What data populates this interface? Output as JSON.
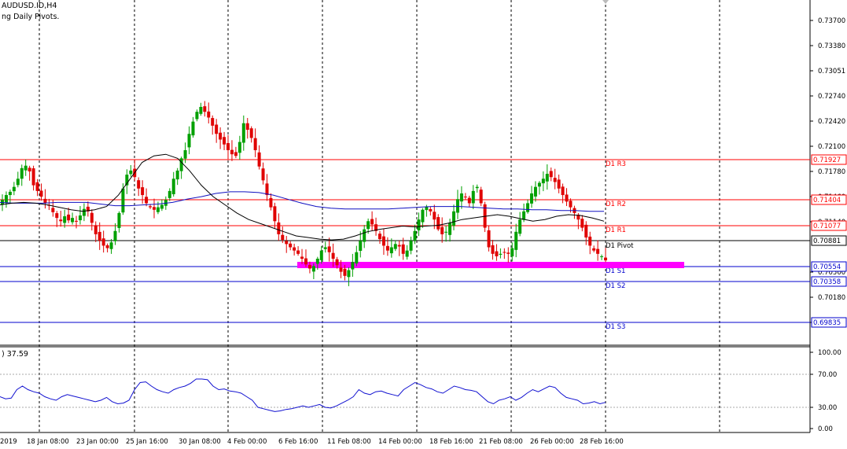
{
  "header": {
    "title": "AUDUSD.ID,H4",
    "indicator_name": "ng Daily Pivots."
  },
  "colors": {
    "up_candle": "#00a000",
    "down_candle": "#e00000",
    "ma_fast": "#000000",
    "ma_slow": "#1010c0",
    "resistance": "#ff0000",
    "pivot": "#000000",
    "support": "#0000cc",
    "zone": "#ff00ff",
    "rsi": "#1010d0",
    "grid": "#000000"
  },
  "price_axis": {
    "ticks": [
      "0.73700",
      "0.73380",
      "0.73051",
      "0.72740",
      "0.72420",
      "0.72100",
      "0.71780",
      "0.71460",
      "0.71140",
      "0.70500",
      "0.70180",
      "0.69860"
    ]
  },
  "time_axis": {
    "labels": [
      "2019",
      "18 Jan 08:00",
      "23 Jan 00:00",
      "25 Jan 16:00",
      "30 Jan 08:00",
      "4 Feb 00:00",
      "6 Feb 16:00",
      "11 Feb 08:00",
      "14 Feb 00:00",
      "18 Feb 16:00",
      "21 Feb 08:00",
      "26 Feb 00:00",
      "28 Feb 16:00"
    ]
  },
  "pivots": [
    {
      "name": "D1  R3",
      "value": 0.71927,
      "price_label": "0.71927",
      "type": "resistance"
    },
    {
      "name": "D1  R2",
      "value": 0.71404,
      "price_label": "0.71404",
      "type": "resistance"
    },
    {
      "name": "D1  R1",
      "value": 0.71077,
      "price_label": "0.71077",
      "type": "resistance"
    },
    {
      "name": "D1  Pivot",
      "value": 0.70881,
      "price_label": "0.70881",
      "type": "pivot"
    },
    {
      "name": "D1  S1",
      "value": 0.70554,
      "price_label": "0.70554",
      "type": "support"
    },
    {
      "name": "D1  S2",
      "value": 0.70358,
      "price_label": "0.70358",
      "type": "support"
    },
    {
      "name": "D1  S3",
      "value": 0.69835,
      "price_label": "0.69835",
      "type": "support"
    }
  ],
  "support_zone": {
    "from": 0.7054,
    "to": 0.7061
  },
  "rsi": {
    "label": ") 37.59",
    "ticks": [
      "100.00",
      "70.00",
      "30.00",
      "0.00"
    ]
  },
  "chart_data": [
    {
      "type": "candlestick",
      "title": "AUDUSD.ID,H4",
      "ylim": [
        0.6977,
        0.7399
      ],
      "close_path": [
        0.7154,
        0.716,
        0.7164,
        0.717,
        0.718,
        0.7193,
        0.7196,
        0.7189,
        0.7172,
        0.7165,
        0.7158,
        0.715,
        0.7147,
        0.7139,
        0.7132,
        0.7128,
        0.7134,
        0.7129,
        0.7132,
        0.7128,
        0.7135,
        0.7143,
        0.714,
        0.7126,
        0.7112,
        0.7104,
        0.7098,
        0.7095,
        0.7102,
        0.7116,
        0.7138,
        0.7168,
        0.7185,
        0.719,
        0.7182,
        0.7168,
        0.716,
        0.715,
        0.7145,
        0.7142,
        0.7145,
        0.7148,
        0.7154,
        0.7165,
        0.718,
        0.719,
        0.7205,
        0.7215,
        0.7235,
        0.725,
        0.7262,
        0.7268,
        0.7262,
        0.7255,
        0.7245,
        0.7235,
        0.7228,
        0.7222,
        0.7215,
        0.721,
        0.7208,
        0.7225,
        0.7248,
        0.724,
        0.723,
        0.7215,
        0.7195,
        0.7178,
        0.716,
        0.7145,
        0.7128,
        0.7112,
        0.7105,
        0.71,
        0.7096,
        0.7092,
        0.7088,
        0.7082,
        0.7075,
        0.707,
        0.7073,
        0.7082,
        0.7092,
        0.7096,
        0.709,
        0.7082,
        0.7074,
        0.7066,
        0.7061,
        0.7068,
        0.7078,
        0.709,
        0.7104,
        0.7118,
        0.7128,
        0.7124,
        0.7116,
        0.7106,
        0.7098,
        0.7092,
        0.7096,
        0.71,
        0.7097,
        0.7088,
        0.7092,
        0.7104,
        0.7116,
        0.713,
        0.7142,
        0.7146,
        0.714,
        0.713,
        0.7118,
        0.7112,
        0.7115,
        0.7126,
        0.714,
        0.7155,
        0.7162,
        0.7158,
        0.715,
        0.7165,
        0.717,
        0.715,
        0.712,
        0.7096,
        0.7088,
        0.7085,
        0.7088,
        0.709,
        0.7088,
        0.7095,
        0.7115,
        0.713,
        0.714,
        0.715,
        0.7162,
        0.717,
        0.7175,
        0.718,
        0.7186,
        0.7182,
        0.7176,
        0.7168,
        0.716,
        0.7152,
        0.7145,
        0.7138,
        0.713,
        0.712,
        0.7108,
        0.7098,
        0.7092,
        0.7088,
        0.7085,
        0.708
      ],
      "ma_fast_path": [
        0.7148,
        0.715,
        0.7151,
        0.715,
        0.7148,
        0.7145,
        0.7142,
        0.714,
        0.7142,
        0.7146,
        0.716,
        0.718,
        0.72,
        0.7208,
        0.721,
        0.7205,
        0.719,
        0.7172,
        0.7158,
        0.7148,
        0.7138,
        0.713,
        0.7125,
        0.712,
        0.7115,
        0.711,
        0.7108,
        0.7106,
        0.7105,
        0.7106,
        0.711,
        0.7115,
        0.7118,
        0.712,
        0.7122,
        0.7121,
        0.7122,
        0.7123,
        0.7126,
        0.713,
        0.7132,
        0.7134,
        0.7136,
        0.7134,
        0.7131,
        0.7128,
        0.713,
        0.7134,
        0.7136,
        0.7135,
        0.7132,
        0.7128
      ],
      "ma_slow_path": [
        0.7151,
        0.715,
        0.715,
        0.715,
        0.7151,
        0.7151,
        0.7151,
        0.7149,
        0.7147,
        0.7147,
        0.7148,
        0.7149,
        0.7151,
        0.7155,
        0.7158,
        0.7162,
        0.7164,
        0.7164,
        0.7163,
        0.716,
        0.7155,
        0.715,
        0.7146,
        0.7144,
        0.7143,
        0.7143,
        0.7143,
        0.7143,
        0.7144,
        0.7145,
        0.7146,
        0.7146,
        0.7146,
        0.7145,
        0.7144,
        0.7143,
        0.7143,
        0.7142,
        0.7142,
        0.7141,
        0.7141,
        0.714,
        0.714
      ],
      "xlabel": "",
      "ylabel": ""
    },
    {
      "type": "line",
      "title": "",
      "ylim": [
        0,
        100
      ],
      "values": [
        45,
        42,
        43,
        55,
        60,
        55,
        52,
        50,
        45,
        42,
        40,
        45,
        48,
        46,
        44,
        42,
        40,
        38,
        40,
        44,
        38,
        35,
        36,
        40,
        55,
        65,
        66,
        60,
        55,
        52,
        50,
        55,
        58,
        60,
        64,
        70,
        70,
        69,
        60,
        55,
        56,
        53,
        52,
        50,
        45,
        40,
        30,
        28,
        26,
        24,
        25,
        27,
        28,
        30,
        32,
        30,
        32,
        34,
        30,
        29,
        32,
        36,
        40,
        45,
        55,
        50,
        48,
        52,
        53,
        50,
        48,
        46,
        55,
        60,
        65,
        62,
        58,
        56,
        52,
        50,
        55,
        60,
        58,
        55,
        54,
        52,
        45,
        38,
        35,
        40,
        42,
        45,
        40,
        44,
        50,
        55,
        52,
        56,
        60,
        58,
        50,
        44,
        42,
        40,
        35,
        36,
        38,
        35,
        37
      ],
      "last_value": 37.59,
      "xlabel": "",
      "ylabel": ""
    }
  ]
}
